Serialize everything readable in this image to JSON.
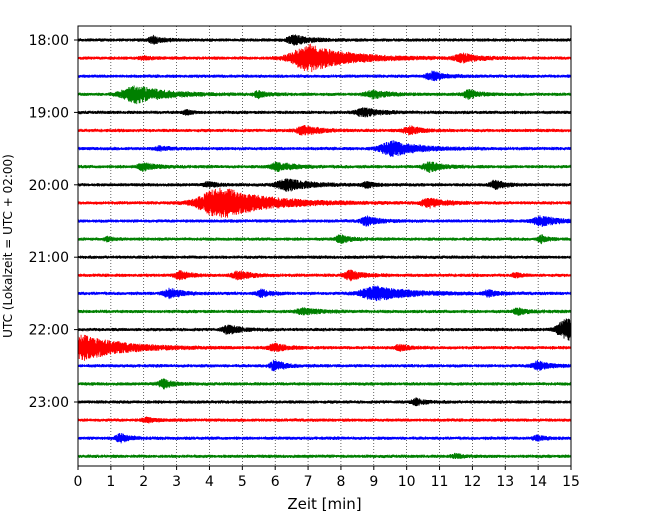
{
  "chart_data": {
    "type": "line",
    "title": "",
    "xlabel": "Zeit  [min]",
    "ylabel": "UTC (Lokalzeit = UTC + 02:00)",
    "xlim": [
      0,
      15
    ],
    "x_ticks": [
      0,
      1,
      2,
      3,
      4,
      5,
      6,
      7,
      8,
      9,
      10,
      11,
      12,
      13,
      14,
      15
    ],
    "y_tick_labels": [
      "18:00",
      "19:00",
      "20:00",
      "21:00",
      "22:00",
      "23:00"
    ],
    "y_tick_rows": [
      0,
      4,
      8,
      12,
      16,
      20
    ],
    "grid": "vertical dotted lines at each minute",
    "legend": "none",
    "color_cycle": [
      "#000000",
      "#ff0000",
      "#0000ff",
      "#008000"
    ],
    "rows_count": 24,
    "row_interval_minutes": 15,
    "series": [
      {
        "time": "18:00",
        "events": [
          {
            "t": 2.3,
            "amp": 0.5,
            "dur": 0.3
          },
          {
            "t": 6.6,
            "amp": 0.55,
            "dur": 0.5
          }
        ]
      },
      {
        "time": "18:15",
        "events": [
          {
            "t": 7.1,
            "amp": 1.7,
            "dur": 1.2
          },
          {
            "t": 11.7,
            "amp": 0.55,
            "dur": 0.5
          },
          {
            "t": 2.0,
            "amp": 0.2,
            "dur": 0.3
          }
        ]
      },
      {
        "time": "18:30",
        "events": [
          {
            "t": 10.8,
            "amp": 0.55,
            "dur": 0.4
          }
        ]
      },
      {
        "time": "18:45",
        "events": [
          {
            "t": 1.8,
            "amp": 1.1,
            "dur": 0.9
          },
          {
            "t": 5.5,
            "amp": 0.4,
            "dur": 0.3
          },
          {
            "t": 9.0,
            "amp": 0.5,
            "dur": 0.5
          },
          {
            "t": 11.9,
            "amp": 0.6,
            "dur": 0.3
          }
        ]
      },
      {
        "time": "19:00",
        "events": [
          {
            "t": 8.7,
            "amp": 0.55,
            "dur": 0.5
          },
          {
            "t": 3.3,
            "amp": 0.3,
            "dur": 0.2
          }
        ]
      },
      {
        "time": "19:15",
        "events": [
          {
            "t": 6.9,
            "amp": 0.6,
            "dur": 0.5
          },
          {
            "t": 10.1,
            "amp": 0.5,
            "dur": 0.4
          }
        ]
      },
      {
        "time": "19:30",
        "events": [
          {
            "t": 9.6,
            "amp": 0.95,
            "dur": 0.8
          },
          {
            "t": 2.5,
            "amp": 0.25,
            "dur": 0.3
          }
        ]
      },
      {
        "time": "19:45",
        "events": [
          {
            "t": 2.0,
            "amp": 0.45,
            "dur": 0.4
          },
          {
            "t": 6.1,
            "amp": 0.55,
            "dur": 0.5
          },
          {
            "t": 10.7,
            "amp": 0.65,
            "dur": 0.4
          }
        ]
      },
      {
        "time": "20:00",
        "events": [
          {
            "t": 6.4,
            "amp": 0.75,
            "dur": 0.7
          },
          {
            "t": 12.7,
            "amp": 0.6,
            "dur": 0.3
          },
          {
            "t": 4.0,
            "amp": 0.35,
            "dur": 0.3
          },
          {
            "t": 8.8,
            "amp": 0.35,
            "dur": 0.3
          }
        ]
      },
      {
        "time": "20:15",
        "events": [
          {
            "t": 4.4,
            "amp": 2.0,
            "dur": 1.4
          },
          {
            "t": 10.7,
            "amp": 0.55,
            "dur": 0.5
          }
        ]
      },
      {
        "time": "20:30",
        "events": [
          {
            "t": 8.8,
            "amp": 0.55,
            "dur": 0.4
          },
          {
            "t": 14.1,
            "amp": 0.65,
            "dur": 0.5
          }
        ]
      },
      {
        "time": "20:45",
        "events": [
          {
            "t": 8.0,
            "amp": 0.5,
            "dur": 0.3
          },
          {
            "t": 14.1,
            "amp": 0.45,
            "dur": 0.2
          },
          {
            "t": 0.9,
            "amp": 0.25,
            "dur": 0.2
          }
        ]
      },
      {
        "time": "21:00",
        "events": []
      },
      {
        "time": "21:15",
        "events": [
          {
            "t": 3.1,
            "amp": 0.6,
            "dur": 0.3
          },
          {
            "t": 4.9,
            "amp": 0.55,
            "dur": 0.4
          },
          {
            "t": 8.3,
            "amp": 0.6,
            "dur": 0.4
          },
          {
            "t": 13.3,
            "amp": 0.3,
            "dur": 0.2
          }
        ]
      },
      {
        "time": "21:30",
        "events": [
          {
            "t": 2.8,
            "amp": 0.6,
            "dur": 0.4
          },
          {
            "t": 5.6,
            "amp": 0.45,
            "dur": 0.3
          },
          {
            "t": 9.1,
            "amp": 0.9,
            "dur": 1.0
          },
          {
            "t": 12.5,
            "amp": 0.4,
            "dur": 0.3
          }
        ]
      },
      {
        "time": "21:45",
        "events": [
          {
            "t": 6.9,
            "amp": 0.4,
            "dur": 0.5
          },
          {
            "t": 13.4,
            "amp": 0.4,
            "dur": 0.3
          }
        ]
      },
      {
        "time": "22:00",
        "events": [
          {
            "t": 4.6,
            "amp": 0.55,
            "dur": 0.4
          },
          {
            "t": 14.9,
            "amp": 1.4,
            "dur": 0.6
          }
        ]
      },
      {
        "time": "22:15",
        "events": [
          {
            "t": 0.2,
            "amp": 1.6,
            "dur": 1.2
          },
          {
            "t": 6.0,
            "amp": 0.45,
            "dur": 0.4
          },
          {
            "t": 9.8,
            "amp": 0.4,
            "dur": 0.3
          }
        ]
      },
      {
        "time": "22:30",
        "events": [
          {
            "t": 6.0,
            "amp": 0.7,
            "dur": 0.3
          },
          {
            "t": 14.0,
            "amp": 0.55,
            "dur": 0.4
          }
        ]
      },
      {
        "time": "22:45",
        "events": [
          {
            "t": 2.6,
            "amp": 0.6,
            "dur": 0.3
          }
        ]
      },
      {
        "time": "23:00",
        "events": [
          {
            "t": 10.3,
            "amp": 0.4,
            "dur": 0.3
          }
        ]
      },
      {
        "time": "23:15",
        "events": [
          {
            "t": 2.1,
            "amp": 0.3,
            "dur": 0.3
          }
        ]
      },
      {
        "time": "23:30",
        "events": [
          {
            "t": 1.3,
            "amp": 0.55,
            "dur": 0.3
          },
          {
            "t": 14.0,
            "amp": 0.3,
            "dur": 0.3
          }
        ]
      },
      {
        "time": "23:45",
        "events": [
          {
            "t": 11.5,
            "amp": 0.25,
            "dur": 0.3
          }
        ]
      }
    ]
  }
}
